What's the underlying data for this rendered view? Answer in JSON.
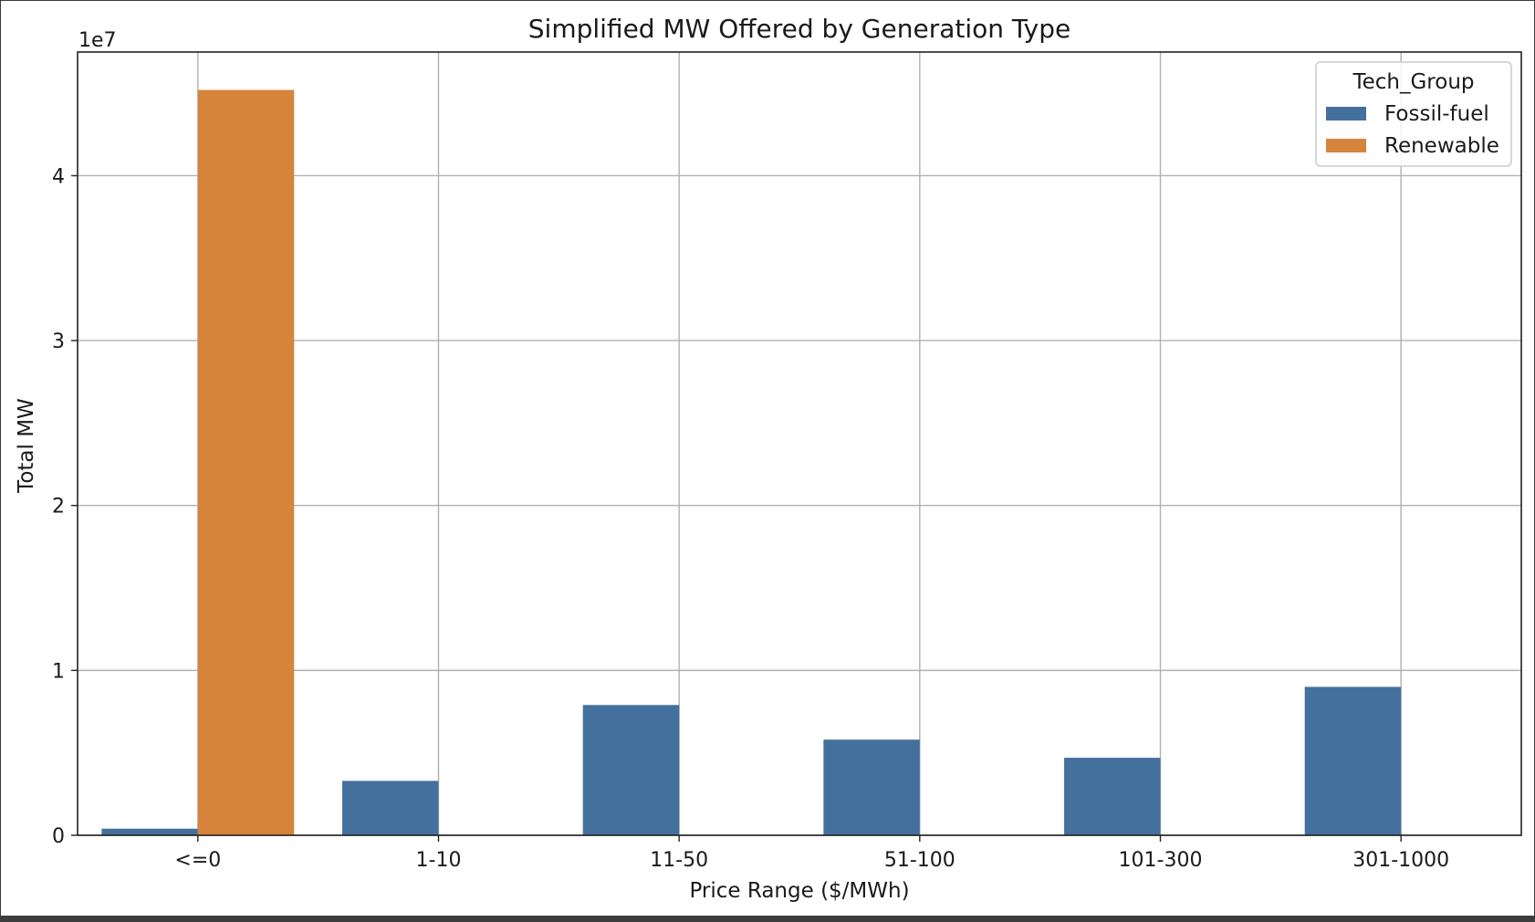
{
  "chart_data": {
    "type": "bar",
    "title": "Simplified MW Offered by Generation Type",
    "xlabel": "Price Range ($/MWh)",
    "ylabel": "Total MW",
    "y_scale_label": "1e7",
    "y_scale_factor": 10000000,
    "ylim": [
      0,
      47500000
    ],
    "yticks": [
      0,
      10000000,
      20000000,
      30000000,
      40000000
    ],
    "ytick_labels": [
      "0",
      "1",
      "2",
      "3",
      "4"
    ],
    "categories": [
      "<=0",
      "1-10",
      "11-50",
      "51-100",
      "101-300",
      "301-1000"
    ],
    "legend_title": "Tech_Group",
    "legend_position": "top-right",
    "grid": true,
    "series": [
      {
        "name": "Fossil-fuel",
        "color": "#44709d",
        "values": [
          400000,
          3300000,
          7900000,
          5800000,
          4700000,
          9000000
        ]
      },
      {
        "name": "Renewable",
        "color": "#d6843c",
        "values": [
          45200000,
          0,
          0,
          0,
          0,
          0
        ]
      }
    ]
  }
}
